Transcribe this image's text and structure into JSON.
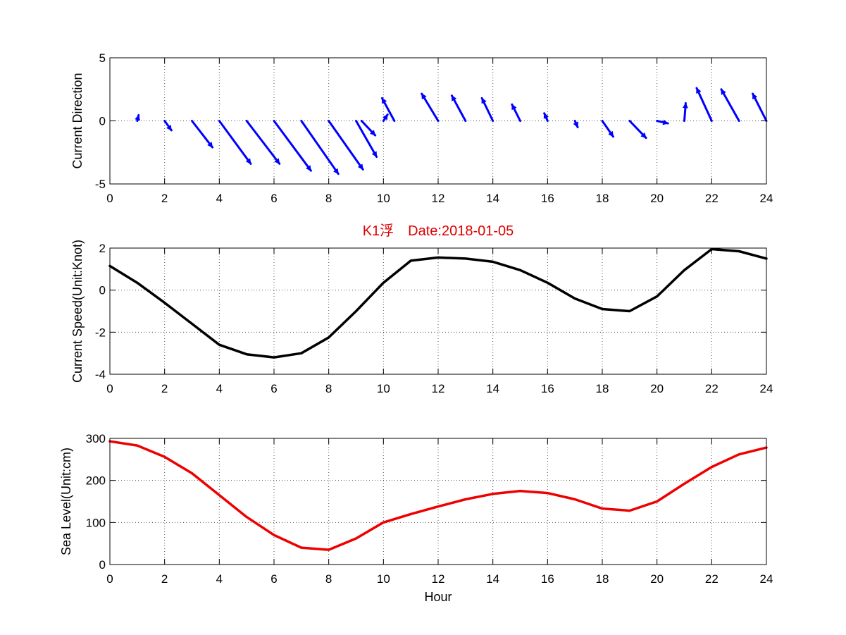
{
  "chart_data": [
    {
      "type": "quiver",
      "ylabel": "Current Direction",
      "xlim": [
        0,
        24
      ],
      "ylim": [
        -5,
        5
      ],
      "xticks": [
        0,
        2,
        4,
        6,
        8,
        10,
        12,
        14,
        16,
        18,
        20,
        22,
        24
      ],
      "yticks": [
        -5,
        0,
        5
      ],
      "grid": true,
      "color": "#0000ff",
      "arrows": [
        {
          "x": 1,
          "u": 0.05,
          "v": 0.45
        },
        {
          "x": 2,
          "u": 0.25,
          "v": -0.75
        },
        {
          "x": 3,
          "u": 0.75,
          "v": -2.1
        },
        {
          "x": 4,
          "u": 1.15,
          "v": -3.4
        },
        {
          "x": 5,
          "u": 1.2,
          "v": -3.4
        },
        {
          "x": 6,
          "u": 1.35,
          "v": -3.95
        },
        {
          "x": 7,
          "u": 1.35,
          "v": -4.2
        },
        {
          "x": 8,
          "u": 1.25,
          "v": -3.85
        },
        {
          "x": 9,
          "u": 0.75,
          "v": -2.85
        },
        {
          "x": 9.2,
          "u": 0.5,
          "v": -1.15
        },
        {
          "x": 10,
          "u": 0.15,
          "v": 0.5
        },
        {
          "x": 10.4,
          "u": -0.45,
          "v": 1.8
        },
        {
          "x": 12,
          "u": -0.6,
          "v": 2.15
        },
        {
          "x": 13,
          "u": -0.5,
          "v": 2.0
        },
        {
          "x": 14,
          "u": -0.4,
          "v": 1.8
        },
        {
          "x": 15,
          "u": -0.3,
          "v": 1.3
        },
        {
          "x": 16,
          "u": -0.12,
          "v": 0.6
        },
        {
          "x": 17,
          "u": 0.1,
          "v": -0.5
        },
        {
          "x": 18,
          "u": 0.4,
          "v": -1.25
        },
        {
          "x": 19,
          "u": 0.6,
          "v": -1.35
        },
        {
          "x": 20,
          "u": 0.4,
          "v": -0.2
        },
        {
          "x": 21,
          "u": 0.05,
          "v": 1.4
        },
        {
          "x": 22,
          "u": -0.55,
          "v": 2.6
        },
        {
          "x": 23,
          "u": -0.65,
          "v": 2.5
        },
        {
          "x": 24,
          "u": -0.5,
          "v": 2.15
        }
      ]
    },
    {
      "type": "line",
      "title": "K1浮　Date:2018-01-05",
      "title_color": "#dd0000",
      "ylabel": "Current Speed(Unit:Knot)",
      "xlim": [
        0,
        24
      ],
      "ylim": [
        -4,
        2
      ],
      "xticks": [
        0,
        2,
        4,
        6,
        8,
        10,
        12,
        14,
        16,
        18,
        20,
        22,
        24
      ],
      "yticks": [
        -4,
        -2,
        0,
        2
      ],
      "grid": true,
      "series": [
        {
          "color": "#000000",
          "x": [
            0,
            1,
            2,
            3,
            4,
            5,
            6,
            7,
            8,
            9,
            10,
            11,
            12,
            13,
            14,
            15,
            16,
            17,
            18,
            19,
            20,
            21,
            22,
            23,
            24
          ],
          "values": [
            1.15,
            0.35,
            -0.6,
            -1.6,
            -2.6,
            -3.05,
            -3.2,
            -3.0,
            -2.25,
            -1.0,
            0.35,
            1.4,
            1.55,
            1.5,
            1.35,
            0.95,
            0.35,
            -0.4,
            -0.9,
            -1.0,
            -0.3,
            0.95,
            1.95,
            1.85,
            1.5
          ]
        }
      ]
    },
    {
      "type": "line",
      "xlabel": "Hour",
      "ylabel": "Sea Level(Unit:cm)",
      "xlim": [
        0,
        24
      ],
      "ylim": [
        0,
        300
      ],
      "xticks": [
        0,
        2,
        4,
        6,
        8,
        10,
        12,
        14,
        16,
        18,
        20,
        22,
        24
      ],
      "yticks": [
        0,
        100,
        200,
        300
      ],
      "grid": true,
      "series": [
        {
          "color": "#ee0000",
          "x": [
            0,
            1,
            2,
            3,
            4,
            5,
            6,
            7,
            8,
            9,
            10,
            11,
            12,
            13,
            14,
            15,
            16,
            17,
            18,
            19,
            20,
            21,
            22,
            23,
            24
          ],
          "values": [
            293,
            283,
            256,
            217,
            165,
            113,
            70,
            40,
            35,
            62,
            100,
            120,
            138,
            155,
            168,
            175,
            170,
            155,
            133,
            128,
            150,
            192,
            232,
            262,
            278
          ]
        }
      ]
    }
  ]
}
